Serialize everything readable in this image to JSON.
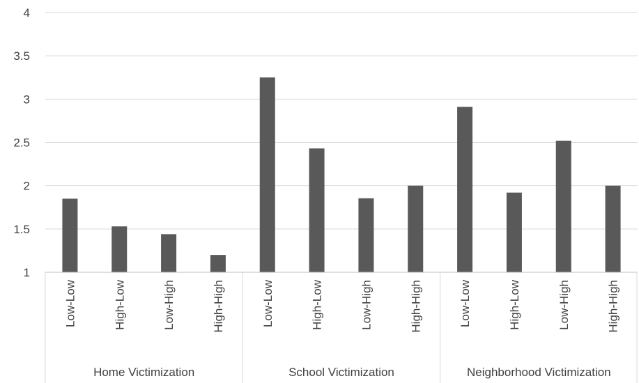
{
  "chart_data": {
    "type": "bar",
    "title": "",
    "xlabel": "",
    "ylabel": "",
    "ylim": [
      1,
      4
    ],
    "yticks": [
      "1",
      "1.5",
      "2",
      "2.5",
      "3",
      "3.5",
      "4"
    ],
    "grid": true,
    "legend": "none",
    "bar_color": "#595959",
    "groups": [
      {
        "name": "Home Victimization",
        "categories": [
          "Low-Low",
          "High-Low",
          "Low-High",
          "High-High"
        ],
        "values": [
          1.85,
          1.53,
          1.44,
          1.2
        ]
      },
      {
        "name": "School Victimization",
        "categories": [
          "Low-Low",
          "High-Low",
          "Low-High",
          "High-High"
        ],
        "values": [
          3.25,
          2.43,
          1.855,
          2.0
        ]
      },
      {
        "name": "Neighborhood Victimization",
        "categories": [
          "Low-Low",
          "High-Low",
          "Low-High",
          "High-High"
        ],
        "values": [
          2.91,
          1.92,
          2.52,
          2.0
        ]
      }
    ]
  }
}
